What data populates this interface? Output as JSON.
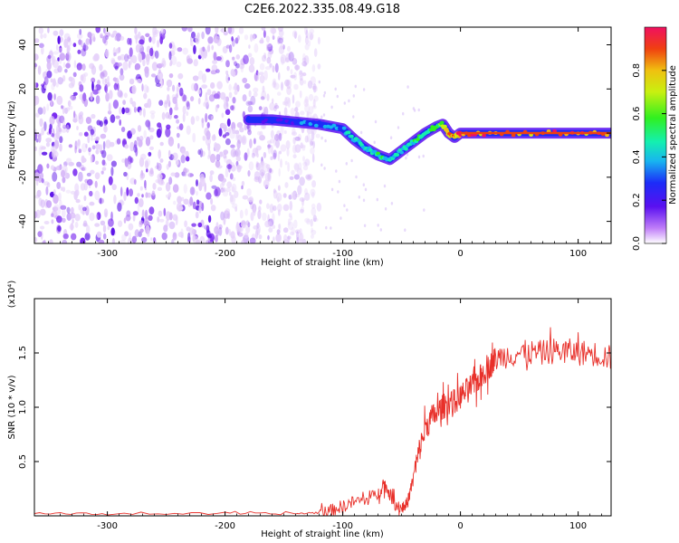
{
  "title": "C2E6.2022.335.08.49.G18",
  "chart_data": [
    {
      "type": "heatmap",
      "xlabel": "Height of straight line (km)",
      "ylabel": "Frequency (Hz)",
      "xlim": [
        -362,
        128
      ],
      "ylim": [
        -50,
        48
      ],
      "xticks": [
        "-300",
        "-200",
        "-100",
        "0",
        "100"
      ],
      "yticks": [
        "40",
        "20",
        "0",
        "-20",
        "-40"
      ],
      "colorbar": {
        "label": "Normalized spectral amplitude",
        "ticks": [
          "0.0",
          "0.2",
          "0.4",
          "0.6",
          "0.8"
        ],
        "range": [
          0,
          1
        ]
      },
      "noise_region_x": [
        -362,
        -120
      ],
      "signal_trace": {
        "x": [
          -180,
          -160,
          -140,
          -120,
          -100,
          -90,
          -80,
          -70,
          -60,
          -50,
          -40,
          -30,
          -20,
          -15,
          -10,
          -5,
          0,
          20,
          60,
          100,
          128
        ],
        "y": [
          6,
          6,
          5,
          4,
          2,
          -3,
          -7,
          -10,
          -12,
          -8,
          -4,
          0,
          3,
          4,
          0,
          -2,
          0,
          0,
          0,
          0,
          0
        ],
        "amplitude": [
          0.3,
          0.3,
          0.35,
          0.4,
          0.45,
          0.5,
          0.5,
          0.55,
          0.5,
          0.5,
          0.55,
          0.6,
          0.65,
          0.7,
          0.9,
          0.9,
          0.95,
          0.95,
          0.95,
          0.95,
          0.95
        ]
      },
      "grid": false
    },
    {
      "type": "line",
      "xlabel": "Height of straight line (km)",
      "ylabel": "SNR (10 * v/v)",
      "scale_label": "(x10⁴)",
      "xlim": [
        -362,
        128
      ],
      "ylim": [
        0,
        2.0
      ],
      "xticks": [
        "-300",
        "-200",
        "-100",
        "0",
        "100"
      ],
      "yticks": [
        "0.5",
        "1.0",
        "1.5"
      ],
      "series": [
        {
          "color": "#e8302a",
          "x": [
            -362,
            -300,
            -200,
            -140,
            -120,
            -110,
            -100,
            -90,
            -80,
            -70,
            -65,
            -60,
            -55,
            -50,
            -45,
            -40,
            -35,
            -30,
            -25,
            -20,
            -15,
            -10,
            -5,
            0,
            5,
            10,
            15,
            20,
            25,
            30,
            40,
            50,
            60,
            70,
            80,
            90,
            100,
            110,
            120,
            128
          ],
          "y": [
            0.02,
            0.02,
            0.02,
            0.02,
            0.03,
            0.05,
            0.09,
            0.13,
            0.15,
            0.2,
            0.3,
            0.2,
            0.1,
            0.07,
            0.12,
            0.35,
            0.6,
            0.8,
            0.9,
            0.95,
            1.0,
            1.05,
            1.05,
            1.1,
            1.15,
            1.2,
            1.25,
            1.32,
            1.38,
            1.45,
            1.48,
            1.5,
            1.5,
            1.5,
            1.52,
            1.52,
            1.5,
            1.5,
            1.48,
            1.45
          ]
        }
      ]
    }
  ],
  "colors": {
    "line": "#e8302a",
    "noise": "#7a2cf0"
  }
}
